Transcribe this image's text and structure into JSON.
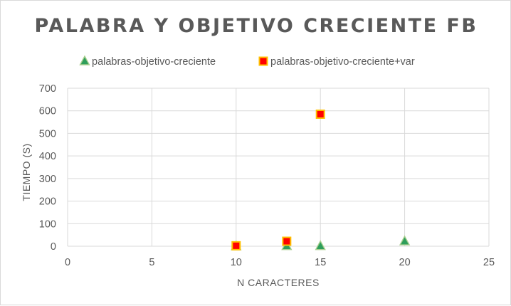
{
  "chart_data": {
    "type": "scatter",
    "title": "PALABRA Y OBJETIVO CRECIENTE FB",
    "xlabel": "N CARACTERES",
    "ylabel": "TIEMPO (S)",
    "xlim": [
      0,
      25
    ],
    "ylim": [
      0,
      700
    ],
    "x_ticks": [
      "0",
      "5",
      "10",
      "15",
      "20",
      "25"
    ],
    "y_ticks": [
      "0",
      "100",
      "200",
      "300",
      "400",
      "500",
      "600",
      "700"
    ],
    "grid": true,
    "legend_position": "top",
    "series": [
      {
        "name": "palabras-objetivo-creciente",
        "marker": "triangle",
        "fill": "#2e9e5b",
        "stroke": "#a8cf8e",
        "points": [
          {
            "x": 10,
            "y": 0
          },
          {
            "x": 13,
            "y": 1
          },
          {
            "x": 15,
            "y": 1
          },
          {
            "x": 20,
            "y": 22
          }
        ]
      },
      {
        "name": "palabras-objetivo-creciente+var",
        "marker": "square",
        "fill": "#ff0000",
        "stroke": "#ffc000",
        "points": [
          {
            "x": 10,
            "y": 2
          },
          {
            "x": 13,
            "y": 22
          },
          {
            "x": 15,
            "y": 585
          }
        ]
      }
    ]
  }
}
